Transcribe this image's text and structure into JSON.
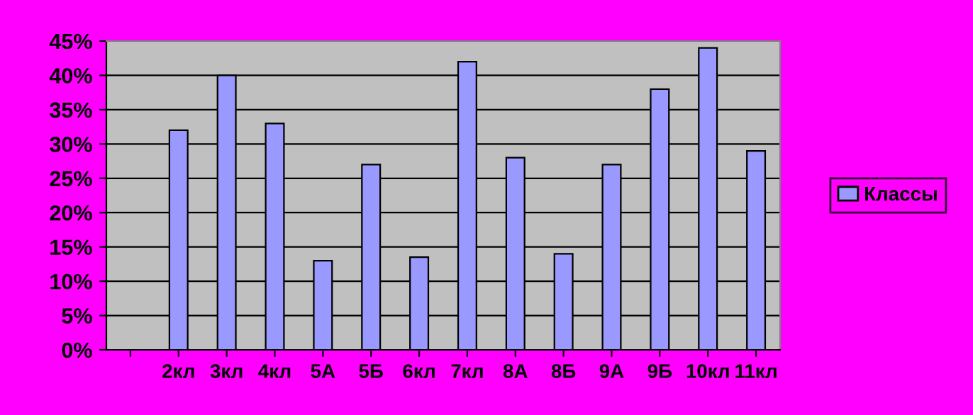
{
  "chart_data": {
    "type": "bar",
    "categories": [
      null,
      "2кл",
      "3кл",
      "4кл",
      "5А",
      "5Б",
      "6кл",
      "7кл",
      "8А",
      "8Б",
      "9А",
      "9Б",
      "10кл",
      "11кл"
    ],
    "series": [
      {
        "name": "Классы",
        "color": "#9999ff",
        "values": [
          null,
          32,
          40,
          33,
          13,
          27,
          13.5,
          42,
          28,
          14,
          27,
          38,
          44,
          29
        ]
      }
    ],
    "ylim": [
      0,
      45
    ],
    "yticks": [
      {
        "value": 0,
        "label": "0%"
      },
      {
        "value": 5,
        "label": "5%"
      },
      {
        "value": 10,
        "label": "10%"
      },
      {
        "value": 15,
        "label": "15%"
      },
      {
        "value": 20,
        "label": "20%"
      },
      {
        "value": 25,
        "label": "25%"
      },
      {
        "value": 30,
        "label": "30%"
      },
      {
        "value": 35,
        "label": "35%"
      },
      {
        "value": 40,
        "label": "40%"
      },
      {
        "value": 45,
        "label": "45%"
      }
    ],
    "grid": "y",
    "legend": "right"
  }
}
